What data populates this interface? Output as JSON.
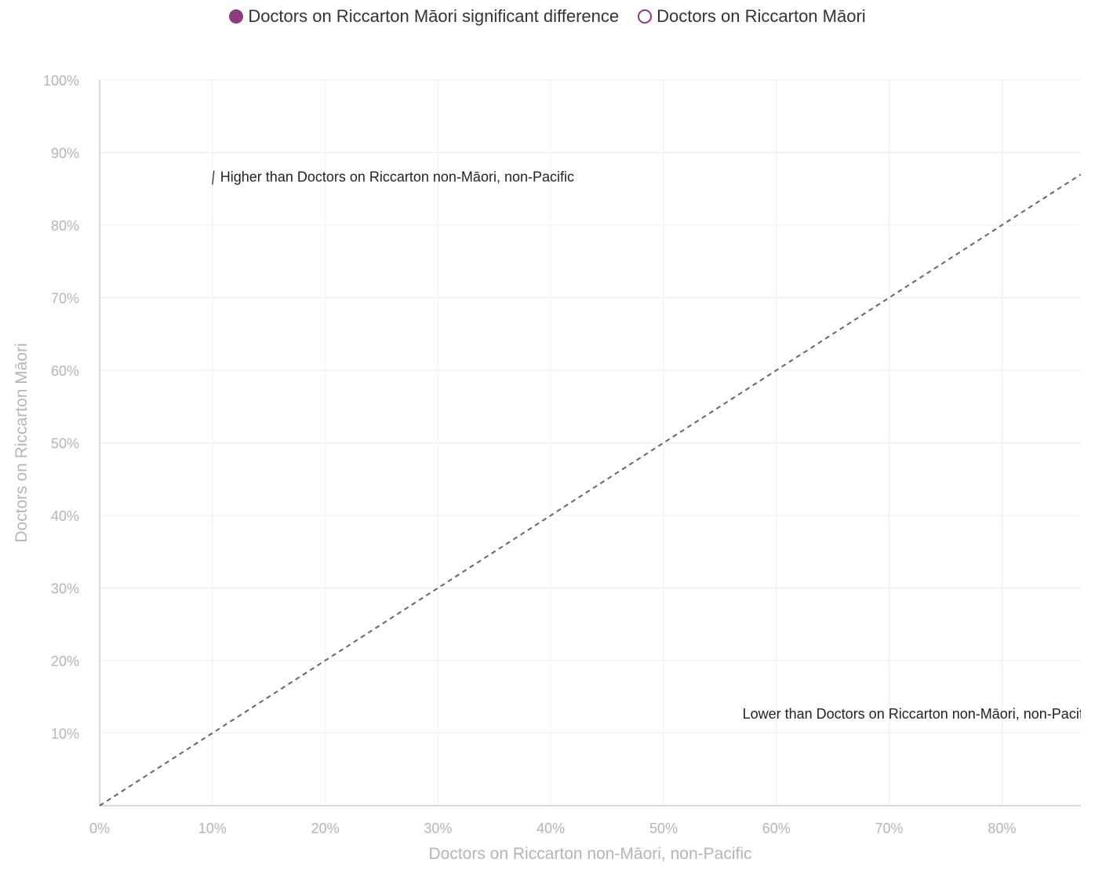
{
  "chart_data": {
    "type": "scatter",
    "legend": [
      {
        "name": "Doctors on Riccarton Māori significant difference",
        "style": "filled",
        "color": "#8e3a7d"
      },
      {
        "name": "Doctors on Riccarton Māori",
        "style": "hollow",
        "color": "#8e3a7d"
      }
    ],
    "legend_position": "top-center",
    "series": [
      {
        "name": "Doctors on Riccarton Māori significant difference",
        "points": []
      },
      {
        "name": "Doctors on Riccarton Māori",
        "points": []
      }
    ],
    "xlabel": "Doctors on Riccarton non-Māori, non-Pacific",
    "ylabel": "Doctors on Riccarton Māori",
    "xlim": [
      0,
      87
    ],
    "ylim": [
      0,
      100
    ],
    "x_ticks": [
      {
        "value": 0,
        "label": "0%"
      },
      {
        "value": 10,
        "label": "10%"
      },
      {
        "value": 20,
        "label": "20%"
      },
      {
        "value": 30,
        "label": "30%"
      },
      {
        "value": 40,
        "label": "40%"
      },
      {
        "value": 50,
        "label": "50%"
      },
      {
        "value": 60,
        "label": "60%"
      },
      {
        "value": 70,
        "label": "70%"
      },
      {
        "value": 80,
        "label": "80%"
      }
    ],
    "y_ticks": [
      {
        "value": 10,
        "label": "10%"
      },
      {
        "value": 20,
        "label": "20%"
      },
      {
        "value": 30,
        "label": "30%"
      },
      {
        "value": 40,
        "label": "40%"
      },
      {
        "value": 50,
        "label": "50%"
      },
      {
        "value": 60,
        "label": "60%"
      },
      {
        "value": 70,
        "label": "70%"
      },
      {
        "value": 80,
        "label": "80%"
      },
      {
        "value": 90,
        "label": "90%"
      },
      {
        "value": 100,
        "label": "100%"
      }
    ],
    "reference_line": {
      "from": [
        0,
        0
      ],
      "to": [
        87,
        87
      ],
      "style": "dashed"
    },
    "annotations": [
      {
        "text": "Higher than Doctors on Riccarton non-Māori, non-Pacific",
        "x": 10,
        "y": 86
      },
      {
        "text": "Lower than Doctors on Riccarton non-Māori, non-Pacific",
        "x": 57,
        "y": 12
      }
    ],
    "grid": true
  }
}
